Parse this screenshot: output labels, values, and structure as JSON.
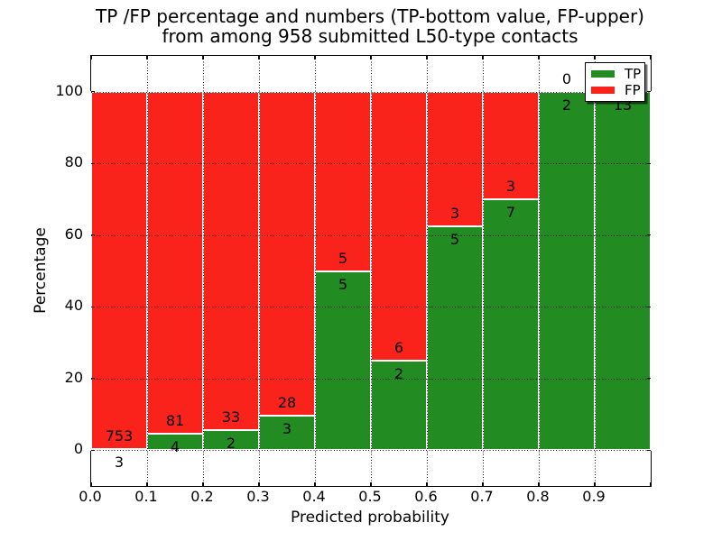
{
  "chart_data": {
    "type": "bar",
    "stacked": true,
    "title_lines": [
      "TP /FP percentage and numbers (TP-bottom value, FP-upper)",
      "from among 958 submitted L50-type contacts"
    ],
    "xlabel": "Predicted probability",
    "ylabel": "Percentage",
    "total_contacts": 958,
    "xlim": [
      0.0,
      1.0
    ],
    "ylim": [
      -10,
      110
    ],
    "grid": true,
    "x_tick_labels": [
      "0.0",
      "0.1",
      "0.2",
      "0.3",
      "0.4",
      "0.5",
      "0.6",
      "0.7",
      "0.8",
      "0.9"
    ],
    "y_ticks": [
      0,
      20,
      40,
      60,
      80,
      100
    ],
    "bins": [
      {
        "range": [
          0.0,
          0.1
        ],
        "tp": 3,
        "fp": 753
      },
      {
        "range": [
          0.1,
          0.2
        ],
        "tp": 4,
        "fp": 81
      },
      {
        "range": [
          0.2,
          0.3
        ],
        "tp": 2,
        "fp": 33
      },
      {
        "range": [
          0.3,
          0.4
        ],
        "tp": 3,
        "fp": 28
      },
      {
        "range": [
          0.4,
          0.5
        ],
        "tp": 5,
        "fp": 5
      },
      {
        "range": [
          0.5,
          0.6
        ],
        "tp": 2,
        "fp": 6
      },
      {
        "range": [
          0.6,
          0.7
        ],
        "tp": 5,
        "fp": 3
      },
      {
        "range": [
          0.7,
          0.8
        ],
        "tp": 7,
        "fp": 3
      },
      {
        "range": [
          0.8,
          0.9
        ],
        "tp": 2,
        "fp": 0
      },
      {
        "range": [
          0.9,
          1.0
        ],
        "tp": 13,
        "fp": 0
      }
    ],
    "series": [
      {
        "name": "TP",
        "color": "#228b22"
      },
      {
        "name": "FP",
        "color": "#fa231c"
      }
    ],
    "legend": {
      "position": "upper-right",
      "entries": [
        {
          "label": "TP",
          "color": "#228b22"
        },
        {
          "label": "FP",
          "color": "#fa231c"
        }
      ]
    }
  }
}
